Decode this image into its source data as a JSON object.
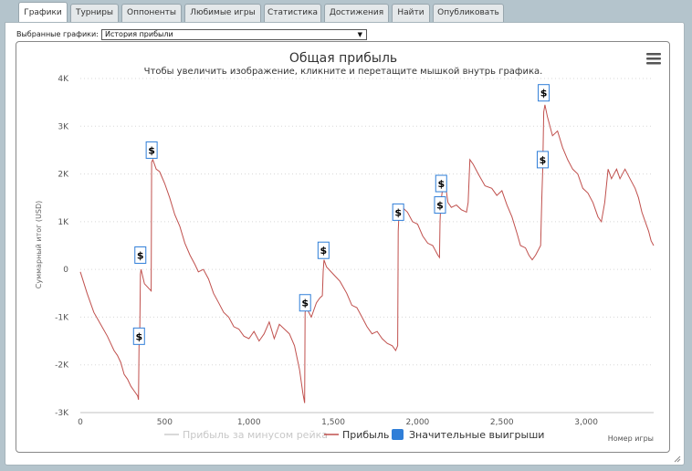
{
  "tabs": [
    {
      "label": "Графики",
      "active": true
    },
    {
      "label": "Турниры"
    },
    {
      "label": "Оппоненты"
    },
    {
      "label": "Любимые игры"
    },
    {
      "label": "Статистика"
    },
    {
      "label": "Достижения"
    },
    {
      "label": "Найти"
    },
    {
      "label": "Опубликовать"
    }
  ],
  "selector": {
    "label": "Выбранные графики:",
    "value": "История прибыли"
  },
  "menu_icon": "hamburger-menu-icon",
  "colors": {
    "profit_line": "#c0504d",
    "rake_line": "#cccccc",
    "big_wins": "#2f7ed8"
  },
  "chart_data": {
    "type": "line",
    "title": "Общая прибыль",
    "subtitle": "Чтобы увеличить изображение, кликните и перетащите мышкой внутрь графика.",
    "xlabel": "Номер игры",
    "ylabel": "Суммарный итог (USD)",
    "xlim": [
      0,
      3400
    ],
    "ylim": [
      -3000,
      4000
    ],
    "x_ticks": [
      {
        "v": 0,
        "label": "0"
      },
      {
        "v": 500,
        "label": "500"
      },
      {
        "v": 1000,
        "label": "1,000"
      },
      {
        "v": 1500,
        "label": "1,500"
      },
      {
        "v": 2000,
        "label": "2,000"
      },
      {
        "v": 2500,
        "label": "2,500"
      },
      {
        "v": 3000,
        "label": "3,000"
      }
    ],
    "y_ticks": [
      {
        "v": -3000,
        "label": "-3K"
      },
      {
        "v": -2000,
        "label": "-2K"
      },
      {
        "v": -1000,
        "label": "-1K"
      },
      {
        "v": 0,
        "label": "0"
      },
      {
        "v": 1000,
        "label": "1K"
      },
      {
        "v": 2000,
        "label": "2K"
      },
      {
        "v": 3000,
        "label": "3K"
      },
      {
        "v": 4000,
        "label": "4K"
      }
    ],
    "grid": true,
    "legend_position": "bottom",
    "legend": [
      {
        "name": "Прибыль за минусом рейка",
        "kind": "line",
        "color": "#cccccc",
        "disabled": true
      },
      {
        "name": "Прибыль",
        "kind": "line",
        "color": "#c0504d"
      },
      {
        "name": "Значительные выигрыши",
        "kind": "box",
        "color": "#2f7ed8"
      }
    ],
    "series": [
      {
        "name": "Прибыль",
        "points": [
          [
            0,
            -50
          ],
          [
            40,
            -500
          ],
          [
            80,
            -900
          ],
          [
            120,
            -1150
          ],
          [
            160,
            -1400
          ],
          [
            200,
            -1700
          ],
          [
            220,
            -1800
          ],
          [
            240,
            -1950
          ],
          [
            260,
            -2200
          ],
          [
            280,
            -2300
          ],
          [
            300,
            -2450
          ],
          [
            320,
            -2550
          ],
          [
            340,
            -2650
          ],
          [
            345,
            -2730
          ],
          [
            348,
            -1600
          ],
          [
            352,
            -1500
          ],
          [
            356,
            -100
          ],
          [
            360,
            0
          ],
          [
            380,
            -300
          ],
          [
            420,
            -450
          ],
          [
            423,
            2250
          ],
          [
            430,
            2300
          ],
          [
            450,
            2100
          ],
          [
            470,
            2050
          ],
          [
            500,
            1800
          ],
          [
            530,
            1500
          ],
          [
            560,
            1150
          ],
          [
            590,
            900
          ],
          [
            620,
            550
          ],
          [
            650,
            300
          ],
          [
            680,
            100
          ],
          [
            700,
            -50
          ],
          [
            730,
            0
          ],
          [
            760,
            -200
          ],
          [
            790,
            -500
          ],
          [
            820,
            -700
          ],
          [
            850,
            -900
          ],
          [
            880,
            -1000
          ],
          [
            910,
            -1200
          ],
          [
            940,
            -1250
          ],
          [
            970,
            -1400
          ],
          [
            1000,
            -1450
          ],
          [
            1030,
            -1300
          ],
          [
            1060,
            -1500
          ],
          [
            1090,
            -1350
          ],
          [
            1120,
            -1100
          ],
          [
            1150,
            -1450
          ],
          [
            1180,
            -1150
          ],
          [
            1210,
            -1250
          ],
          [
            1240,
            -1350
          ],
          [
            1270,
            -1600
          ],
          [
            1300,
            -2100
          ],
          [
            1320,
            -2600
          ],
          [
            1330,
            -2800
          ],
          [
            1333,
            -900
          ],
          [
            1340,
            -800
          ],
          [
            1370,
            -1000
          ],
          [
            1400,
            -700
          ],
          [
            1420,
            -600
          ],
          [
            1435,
            -550
          ],
          [
            1440,
            -50
          ],
          [
            1445,
            200
          ],
          [
            1460,
            50
          ],
          [
            1500,
            -100
          ],
          [
            1540,
            -250
          ],
          [
            1580,
            -500
          ],
          [
            1610,
            -750
          ],
          [
            1640,
            -800
          ],
          [
            1670,
            -1000
          ],
          [
            1700,
            -1200
          ],
          [
            1730,
            -1350
          ],
          [
            1760,
            -1300
          ],
          [
            1790,
            -1450
          ],
          [
            1820,
            -1550
          ],
          [
            1850,
            -1600
          ],
          [
            1870,
            -1700
          ],
          [
            1882,
            -1600
          ],
          [
            1885,
            800
          ],
          [
            1890,
            1200
          ],
          [
            1910,
            1300
          ],
          [
            1940,
            1200
          ],
          [
            1970,
            1000
          ],
          [
            2000,
            950
          ],
          [
            2030,
            700
          ],
          [
            2060,
            550
          ],
          [
            2090,
            500
          ],
          [
            2120,
            300
          ],
          [
            2130,
            250
          ],
          [
            2133,
            1000
          ],
          [
            2138,
            1400
          ],
          [
            2145,
            1600
          ],
          [
            2160,
            1900
          ],
          [
            2180,
            1400
          ],
          [
            2200,
            1300
          ],
          [
            2230,
            1350
          ],
          [
            2260,
            1250
          ],
          [
            2290,
            1200
          ],
          [
            2300,
            1400
          ],
          [
            2310,
            2300
          ],
          [
            2330,
            2200
          ],
          [
            2360,
            2000
          ],
          [
            2400,
            1750
          ],
          [
            2440,
            1700
          ],
          [
            2470,
            1550
          ],
          [
            2500,
            1650
          ],
          [
            2530,
            1350
          ],
          [
            2560,
            1100
          ],
          [
            2590,
            750
          ],
          [
            2610,
            500
          ],
          [
            2640,
            450
          ],
          [
            2660,
            300
          ],
          [
            2680,
            200
          ],
          [
            2700,
            300
          ],
          [
            2730,
            500
          ],
          [
            2737,
            1500
          ],
          [
            2742,
            2100
          ],
          [
            2748,
            3300
          ],
          [
            2755,
            3450
          ],
          [
            2770,
            3200
          ],
          [
            2800,
            2800
          ],
          [
            2830,
            2900
          ],
          [
            2860,
            2550
          ],
          [
            2890,
            2300
          ],
          [
            2920,
            2100
          ],
          [
            2950,
            2000
          ],
          [
            2980,
            1700
          ],
          [
            3010,
            1600
          ],
          [
            3040,
            1400
          ],
          [
            3070,
            1100
          ],
          [
            3090,
            1000
          ],
          [
            3110,
            1400
          ],
          [
            3130,
            2100
          ],
          [
            3150,
            1900
          ],
          [
            3180,
            2100
          ],
          [
            3200,
            1900
          ],
          [
            3230,
            2100
          ],
          [
            3260,
            1900
          ],
          [
            3290,
            1700
          ],
          [
            3310,
            1500
          ],
          [
            3330,
            1200
          ],
          [
            3350,
            1000
          ],
          [
            3370,
            800
          ],
          [
            3385,
            600
          ],
          [
            3400,
            500
          ]
        ]
      }
    ],
    "markers": [
      {
        "x": 348,
        "y": -1400,
        "label": "$"
      },
      {
        "x": 356,
        "y": 300,
        "label": "$"
      },
      {
        "x": 423,
        "y": 2500,
        "label": "$"
      },
      {
        "x": 1333,
        "y": -700,
        "label": "$"
      },
      {
        "x": 1442,
        "y": 400,
        "label": "$"
      },
      {
        "x": 1885,
        "y": 1200,
        "label": "$"
      },
      {
        "x": 2133,
        "y": 1350,
        "label": "$"
      },
      {
        "x": 2140,
        "y": 1800,
        "label": "$"
      },
      {
        "x": 2742,
        "y": 2300,
        "label": "$"
      },
      {
        "x": 2748,
        "y": 3700,
        "label": "$"
      }
    ]
  }
}
